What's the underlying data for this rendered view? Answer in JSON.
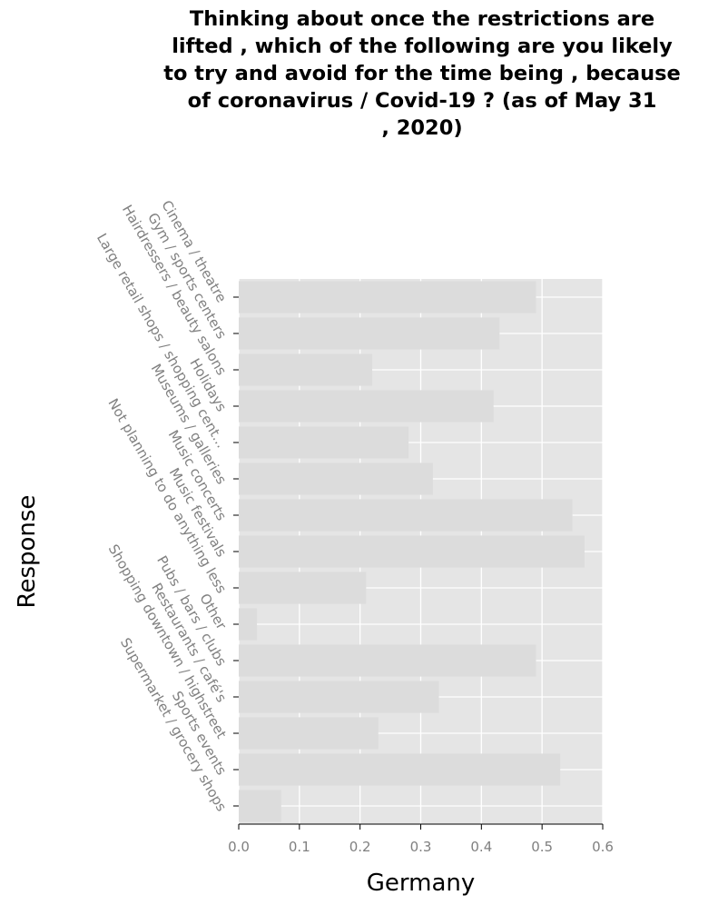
{
  "chart_data": {
    "type": "bar",
    "orientation": "horizontal",
    "title": "Thinking about once the restrictions are lifted , which of the following are you likely to try and avoid for the time being , because of coronavirus / Covid-19 ? (as of May 31 , 2020)",
    "title_lines": [
      "Thinking about once the restrictions are",
      "lifted , which of the following are you likely",
      "to try and avoid for the time being , because",
      "of coronavirus / Covid-19 ? (as of May 31",
      ", 2020)"
    ],
    "xlabel": "Germany",
    "ylabel": "Response",
    "categories": [
      "Cinema / theatre",
      "Gym / sports centers",
      "Hairdressers / beauty salons",
      "Holidays",
      "Large retail shops / shopping cent...",
      "Museums / galleries",
      "Music concerts",
      "Music festivals",
      "Not planning to do anything less",
      "Other",
      "Pubs / bars / clubs",
      "Restaurants / café's",
      "Shopping downtown / highstreet",
      "Sports events",
      "Supermarket / grocery shops"
    ],
    "values": [
      0.49,
      0.43,
      0.22,
      0.42,
      0.28,
      0.32,
      0.55,
      0.57,
      0.21,
      0.03,
      0.49,
      0.33,
      0.23,
      0.53,
      0.07
    ],
    "xlim": [
      0,
      0.6
    ],
    "xticks": [
      "0.0",
      "0.1",
      "0.2",
      "0.3",
      "0.4",
      "0.5",
      "0.6"
    ],
    "grid": true,
    "colors": {
      "panel": "#e5e5e5",
      "bar": "#dcdcdc",
      "grid": "#ffffff",
      "tick": "#808080"
    }
  }
}
